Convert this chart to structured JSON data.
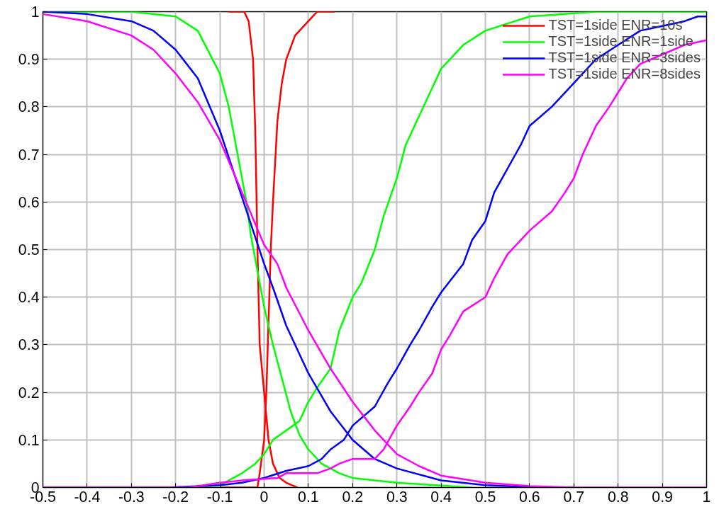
{
  "chart_data": {
    "type": "line",
    "xlim": [
      -0.5,
      1
    ],
    "ylim": [
      0,
      1
    ],
    "xticks": [
      -0.5,
      -0.4,
      -0.3,
      -0.2,
      -0.1,
      0,
      0.1,
      0.2,
      0.3,
      0.4,
      0.5,
      0.6,
      0.7,
      0.8,
      0.9,
      1
    ],
    "yticks": [
      0,
      0.1,
      0.2,
      0.3,
      0.4,
      0.5,
      0.6,
      0.7,
      0.8,
      0.9,
      1
    ],
    "grid": true,
    "legend": "top right",
    "marker": "none",
    "line_style": "solid",
    "series": [
      {
        "name": "TST=1side ENR=10s",
        "color": "#ff0000",
        "x": [
          -0.1,
          -0.015,
          -0.01,
          0.0,
          0.005,
          0.01,
          0.015,
          0.02,
          0.03,
          0.04,
          0.05,
          0.07,
          0.08,
          0.1,
          0.12,
          0.16
        ],
        "values": [
          0,
          0,
          0.03,
          0.1,
          0.2,
          0.35,
          0.5,
          0.6,
          0.77,
          0.85,
          0.9,
          0.95,
          0.96,
          0.98,
          1,
          1
        ]
      },
      {
        "color": "#ff0000",
        "x": [
          -0.08,
          -0.045,
          -0.035,
          -0.025,
          -0.02,
          -0.015,
          -0.01,
          0.0,
          0.005,
          0.01,
          0.02,
          0.035,
          0.05,
          0.075
        ],
        "values": [
          1,
          1,
          0.98,
          0.9,
          0.75,
          0.5,
          0.3,
          0.2,
          0.15,
          0.1,
          0.05,
          0.02,
          0.01,
          0
        ]
      },
      {
        "name": "TST=1side ENR=1side",
        "color": "#00ff00",
        "x": [
          -0.5,
          -0.15,
          -0.1,
          -0.07,
          -0.05,
          -0.02,
          0,
          0.02,
          0.05,
          0.08,
          0.1,
          0.12,
          0.15,
          0.17,
          0.2,
          0.22,
          0.25,
          0.27,
          0.3,
          0.32,
          0.35,
          0.38,
          0.4,
          0.45,
          0.5,
          0.6,
          0.75,
          1
        ],
        "values": [
          0,
          0,
          0.005,
          0.02,
          0.03,
          0.05,
          0.07,
          0.1,
          0.12,
          0.14,
          0.18,
          0.21,
          0.25,
          0.33,
          0.4,
          0.43,
          0.5,
          0.57,
          0.65,
          0.72,
          0.78,
          0.84,
          0.88,
          0.93,
          0.96,
          0.99,
          1,
          1
        ]
      },
      {
        "color": "#00ff00",
        "x": [
          -0.5,
          -0.3,
          -0.2,
          -0.15,
          -0.1,
          -0.08,
          -0.06,
          -0.04,
          -0.03,
          -0.01,
          0,
          0.02,
          0.04,
          0.06,
          0.08,
          0.1,
          0.13,
          0.17,
          0.2,
          0.3,
          0.47
        ],
        "values": [
          1,
          1,
          0.99,
          0.96,
          0.87,
          0.8,
          0.7,
          0.6,
          0.53,
          0.43,
          0.38,
          0.3,
          0.23,
          0.16,
          0.11,
          0.08,
          0.05,
          0.03,
          0.02,
          0.01,
          0
        ]
      },
      {
        "name": "TST=1side ENR=3sides",
        "color": "#0000ff",
        "x": [
          -0.5,
          -0.22,
          -0.1,
          -0.05,
          0,
          0.05,
          0.1,
          0.13,
          0.15,
          0.18,
          0.2,
          0.25,
          0.28,
          0.3,
          0.33,
          0.35,
          0.38,
          0.4,
          0.45,
          0.47,
          0.5,
          0.52,
          0.55,
          0.58,
          0.6,
          0.65,
          0.7,
          0.75,
          0.8,
          0.85,
          0.9,
          0.95,
          0.98,
          1
        ],
        "values": [
          0,
          0,
          0.005,
          0.01,
          0.02,
          0.035,
          0.045,
          0.06,
          0.08,
          0.1,
          0.13,
          0.17,
          0.22,
          0.25,
          0.3,
          0.33,
          0.38,
          0.41,
          0.47,
          0.52,
          0.56,
          0.62,
          0.67,
          0.72,
          0.76,
          0.8,
          0.85,
          0.9,
          0.93,
          0.96,
          0.97,
          0.98,
          0.99,
          0.99
        ]
      },
      {
        "color": "#0000ff",
        "x": [
          -0.5,
          -0.4,
          -0.3,
          -0.25,
          -0.2,
          -0.15,
          -0.1,
          -0.05,
          0,
          0.02,
          0.05,
          0.1,
          0.15,
          0.2,
          0.25,
          0.3,
          0.4,
          0.5,
          0.6,
          0.7
        ],
        "values": [
          1,
          0.995,
          0.98,
          0.96,
          0.92,
          0.86,
          0.75,
          0.61,
          0.47,
          0.42,
          0.34,
          0.24,
          0.16,
          0.1,
          0.06,
          0.04,
          0.015,
          0.005,
          0.001,
          0
        ]
      },
      {
        "name": "TST=1side ENR=8sides",
        "color": "#ff00ff",
        "x": [
          -0.5,
          -0.17,
          -0.1,
          -0.05,
          0.03,
          0.05,
          0.12,
          0.15,
          0.17,
          0.2,
          0.25,
          0.27,
          0.3,
          0.33,
          0.35,
          0.38,
          0.4,
          0.42,
          0.45,
          0.5,
          0.52,
          0.55,
          0.58,
          0.6,
          0.65,
          0.68,
          0.7,
          0.72,
          0.75,
          0.78,
          0.8,
          0.82,
          0.85,
          0.9,
          0.95,
          1
        ],
        "values": [
          0,
          0,
          0.01,
          0.015,
          0.02,
          0.03,
          0.03,
          0.04,
          0.05,
          0.06,
          0.06,
          0.08,
          0.13,
          0.17,
          0.2,
          0.24,
          0.29,
          0.32,
          0.37,
          0.4,
          0.44,
          0.49,
          0.52,
          0.54,
          0.58,
          0.62,
          0.65,
          0.7,
          0.76,
          0.8,
          0.83,
          0.86,
          0.89,
          0.91,
          0.93,
          0.94
        ]
      },
      {
        "color": "#ff00ff",
        "x": [
          -0.5,
          -0.4,
          -0.3,
          -0.25,
          -0.2,
          -0.15,
          -0.1,
          -0.05,
          0,
          0.03,
          0.05,
          0.1,
          0.15,
          0.2,
          0.25,
          0.3,
          0.35,
          0.4,
          0.5,
          0.6,
          0.7,
          1
        ],
        "values": [
          0.995,
          0.98,
          0.95,
          0.92,
          0.87,
          0.81,
          0.73,
          0.62,
          0.51,
          0.47,
          0.42,
          0.33,
          0.25,
          0.18,
          0.12,
          0.07,
          0.045,
          0.025,
          0.01,
          0.003,
          0,
          0
        ]
      }
    ]
  }
}
